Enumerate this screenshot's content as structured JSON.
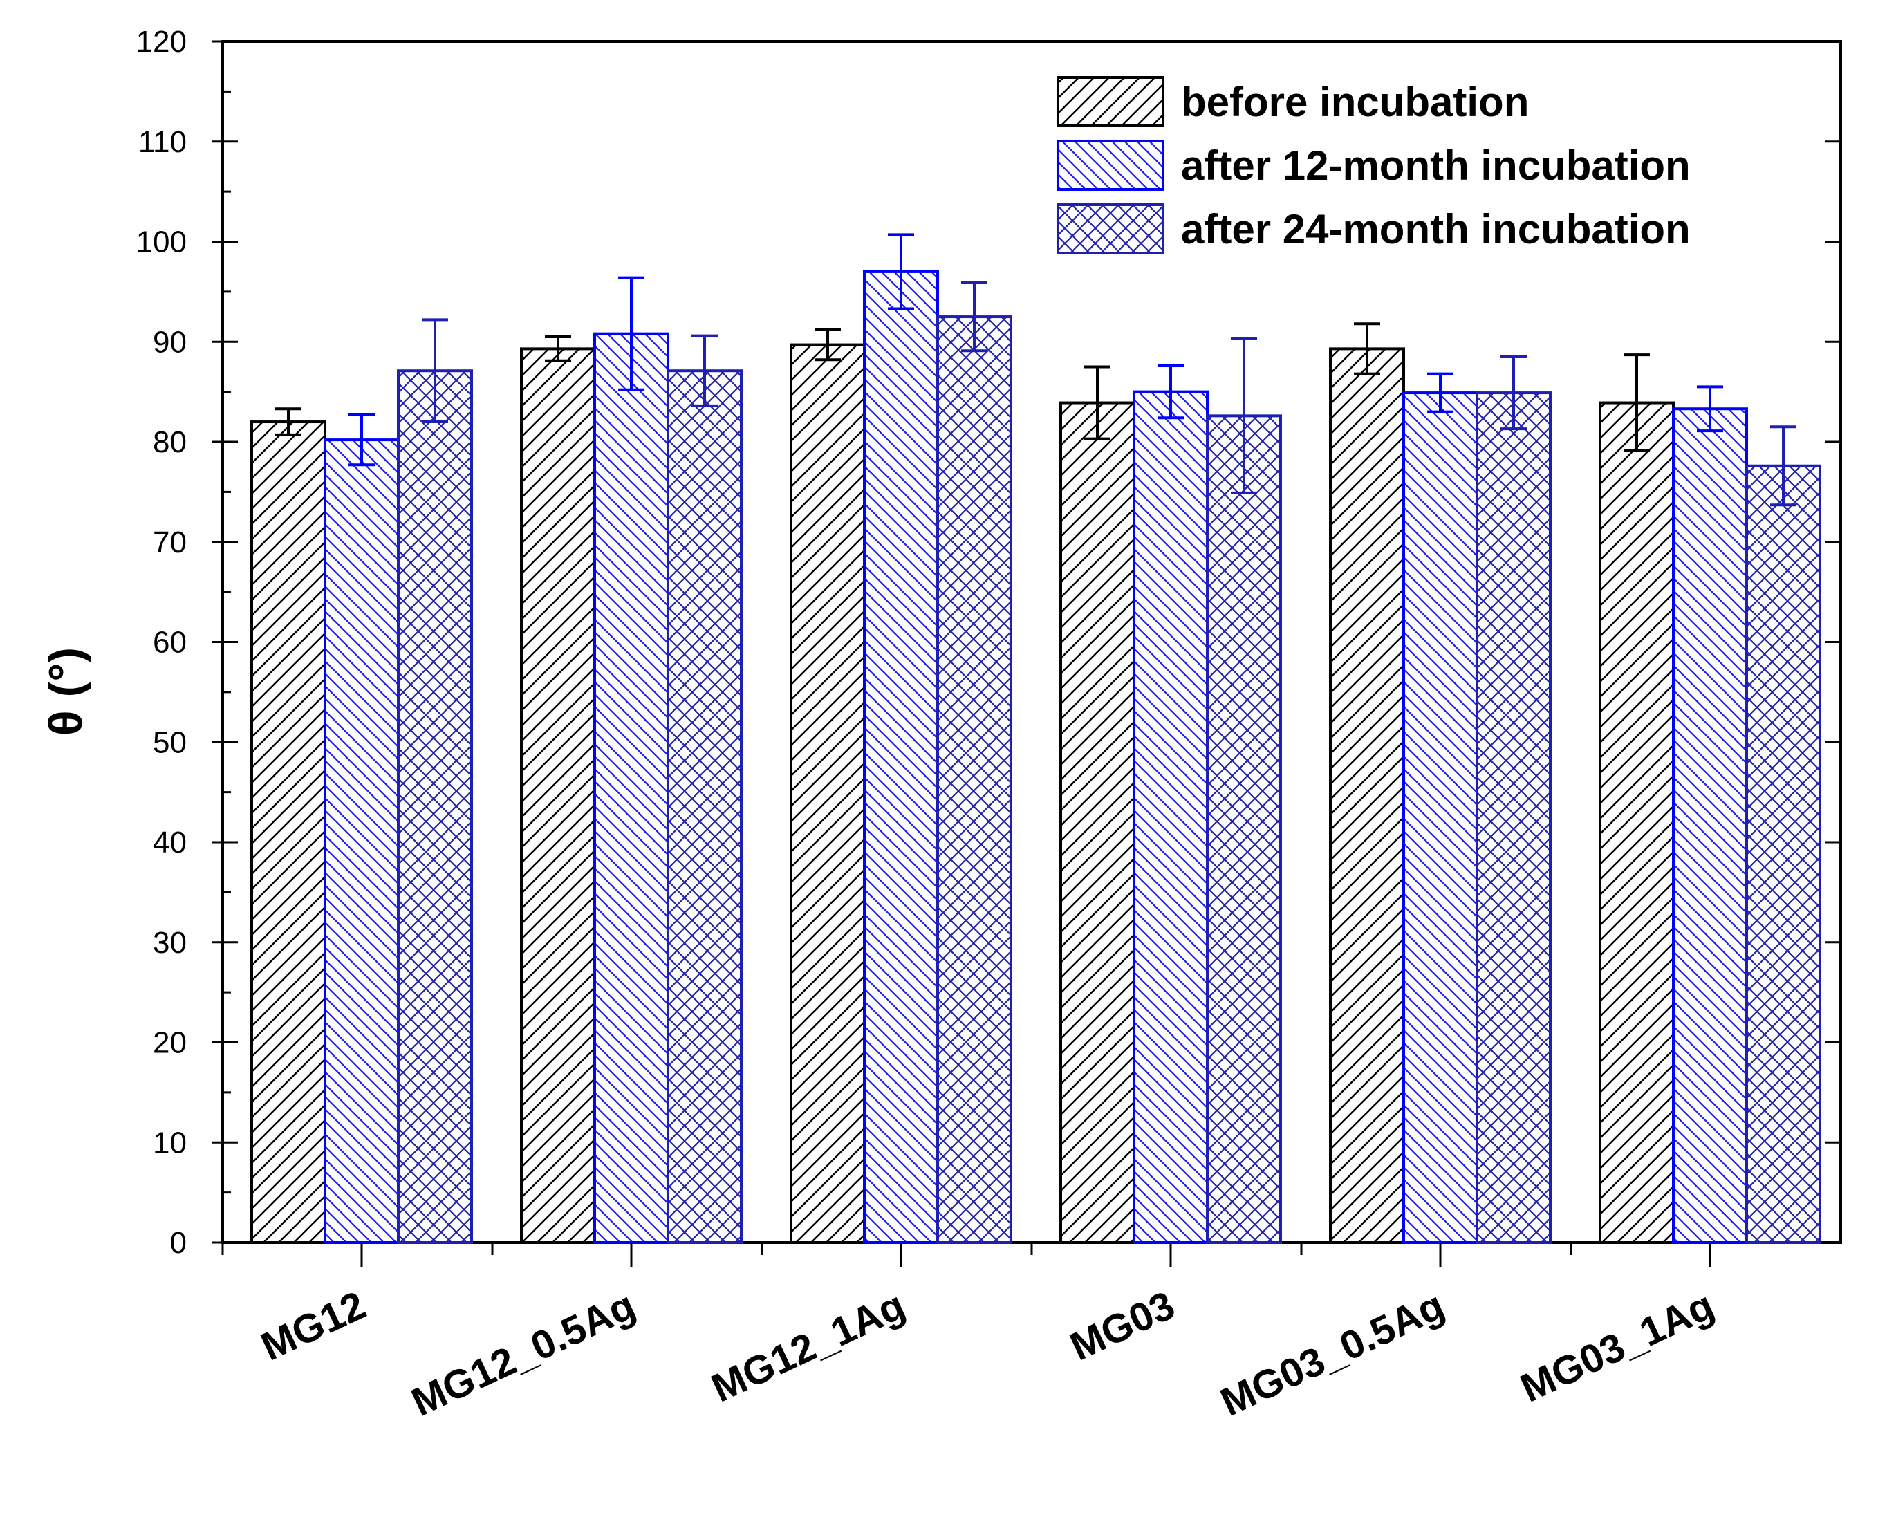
{
  "chart_data": {
    "type": "bar",
    "title": "",
    "xlabel": "",
    "ylabel": "θ (°)",
    "ylim": [
      0,
      120
    ],
    "yticks": [
      0,
      10,
      20,
      30,
      40,
      50,
      60,
      70,
      80,
      90,
      100,
      110,
      120
    ],
    "categories": [
      "MG12",
      "MG12_0.5Ag",
      "MG12_1Ag",
      "MG03",
      "MG03_0.5Ag",
      "MG03_1Ag"
    ],
    "series": [
      {
        "name": "before incubation",
        "values": [
          82.0,
          89.3,
          89.7,
          83.9,
          89.3,
          83.9
        ],
        "errors": [
          1.3,
          1.2,
          1.5,
          3.6,
          2.5,
          4.8
        ],
        "color": "#000000",
        "pattern": "diag-right"
      },
      {
        "name": "after 12-month incubation",
        "values": [
          80.2,
          90.8,
          97.0,
          85.0,
          84.9,
          83.3
        ],
        "errors": [
          2.5,
          5.6,
          3.7,
          2.6,
          1.9,
          2.2
        ],
        "color": "#0000ff",
        "pattern": "diag-left"
      },
      {
        "name": "after 24-month incubation",
        "values": [
          87.1,
          87.1,
          92.5,
          82.6,
          84.9,
          77.6
        ],
        "errors": [
          5.1,
          3.5,
          3.4,
          7.7,
          3.6,
          3.9
        ],
        "color": "#1f1fb4",
        "pattern": "crosshatch"
      }
    ],
    "legend_position": "top-right",
    "grid": false
  }
}
